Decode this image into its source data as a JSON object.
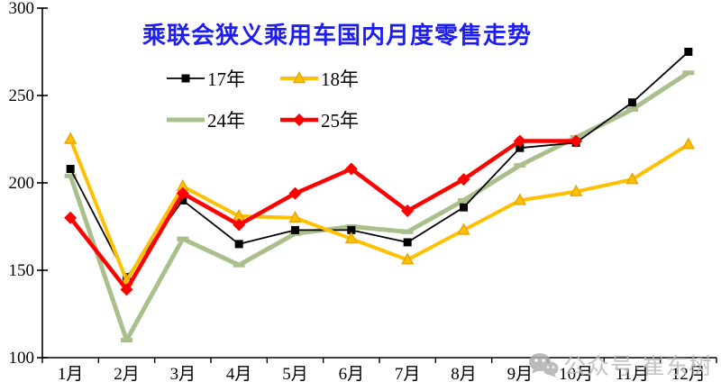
{
  "chart_data": {
    "type": "line",
    "title": "乘联会狭义乘用车国内月度零售走势",
    "title_color": "#1e1ef0",
    "categories": [
      "1月",
      "2月",
      "3月",
      "4月",
      "5月",
      "6月",
      "7月",
      "8月",
      "9月",
      "10月",
      "11月",
      "12月"
    ],
    "xlabel": "",
    "ylabel": "",
    "ylim": [
      100,
      300
    ],
    "y_ticks": [
      100,
      150,
      200,
      250,
      300
    ],
    "grid": false,
    "legend_position": "top-center",
    "series": [
      {
        "name": "17年",
        "color": "#000000",
        "marker": "square",
        "line_width": 1.8,
        "values": [
          208,
          146,
          190,
          165,
          173,
          173,
          166,
          186,
          220,
          223,
          246,
          275
        ]
      },
      {
        "name": "18年",
        "color": "#ffc000",
        "marker": "triangle",
        "line_width": 4,
        "values": [
          225,
          144,
          198,
          181,
          180,
          168,
          156,
          173,
          190,
          195,
          202,
          222
        ]
      },
      {
        "name": "24年",
        "color": "#a9c08c",
        "marker": "dash",
        "line_width": 5,
        "values": [
          204,
          110,
          168,
          153,
          171,
          175,
          172,
          190,
          210,
          226,
          242,
          263
        ]
      },
      {
        "name": "25年",
        "color": "#ff0000",
        "marker": "diamond",
        "line_width": 4.5,
        "values": [
          180,
          139,
          194,
          176,
          194,
          208,
          184,
          202,
          224,
          224
        ]
      }
    ]
  },
  "watermark": {
    "text": "公众号·崔东树",
    "icon": "wechat-icon",
    "color": "#b9b9b9"
  }
}
